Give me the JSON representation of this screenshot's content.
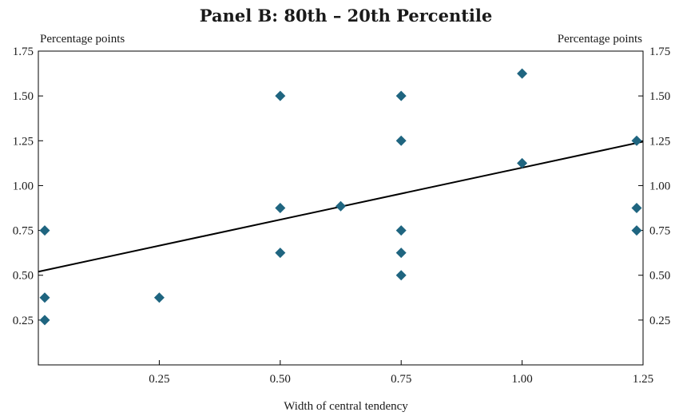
{
  "chart_data": {
    "type": "scatter",
    "title": "Panel B: 80th – 20th Percentile",
    "xlabel": "Width of central tendency",
    "ylabel_left": "Percentage points",
    "ylabel_right": "Percentage points",
    "xlim": [
      0,
      1.25
    ],
    "ylim": [
      0,
      1.75
    ],
    "xticks": [
      0.25,
      0.5,
      0.75,
      1.0,
      1.25
    ],
    "xtick_labels": [
      "0.25",
      "0.50",
      "0.75",
      "1.00",
      "1.25"
    ],
    "yticks": [
      0.25,
      0.5,
      0.75,
      1.0,
      1.25,
      1.5,
      1.75
    ],
    "ytick_labels": [
      "0.25",
      "0.50",
      "0.75",
      "1.00",
      "1.25",
      "1.50",
      "1.75"
    ],
    "grid": false,
    "marker_color": "#1f6580",
    "line_color": "#000000",
    "points": [
      {
        "x": 0.0,
        "y": 0.75
      },
      {
        "x": 0.0,
        "y": 0.375
      },
      {
        "x": 0.0,
        "y": 0.25
      },
      {
        "x": 0.25,
        "y": 0.375
      },
      {
        "x": 0.5,
        "y": 1.5
      },
      {
        "x": 0.5,
        "y": 0.875
      },
      {
        "x": 0.5,
        "y": 0.625
      },
      {
        "x": 0.625,
        "y": 0.885
      },
      {
        "x": 0.75,
        "y": 1.5
      },
      {
        "x": 0.75,
        "y": 1.25
      },
      {
        "x": 0.75,
        "y": 0.75
      },
      {
        "x": 0.75,
        "y": 0.625
      },
      {
        "x": 0.75,
        "y": 0.5
      },
      {
        "x": 1.0,
        "y": 1.625
      },
      {
        "x": 1.0,
        "y": 1.125
      },
      {
        "x": 1.25,
        "y": 1.25
      },
      {
        "x": 1.25,
        "y": 0.875
      },
      {
        "x": 1.25,
        "y": 0.75
      }
    ],
    "fit_line": {
      "x": [
        0.0,
        1.25
      ],
      "y": [
        0.52,
        1.245
      ]
    }
  }
}
